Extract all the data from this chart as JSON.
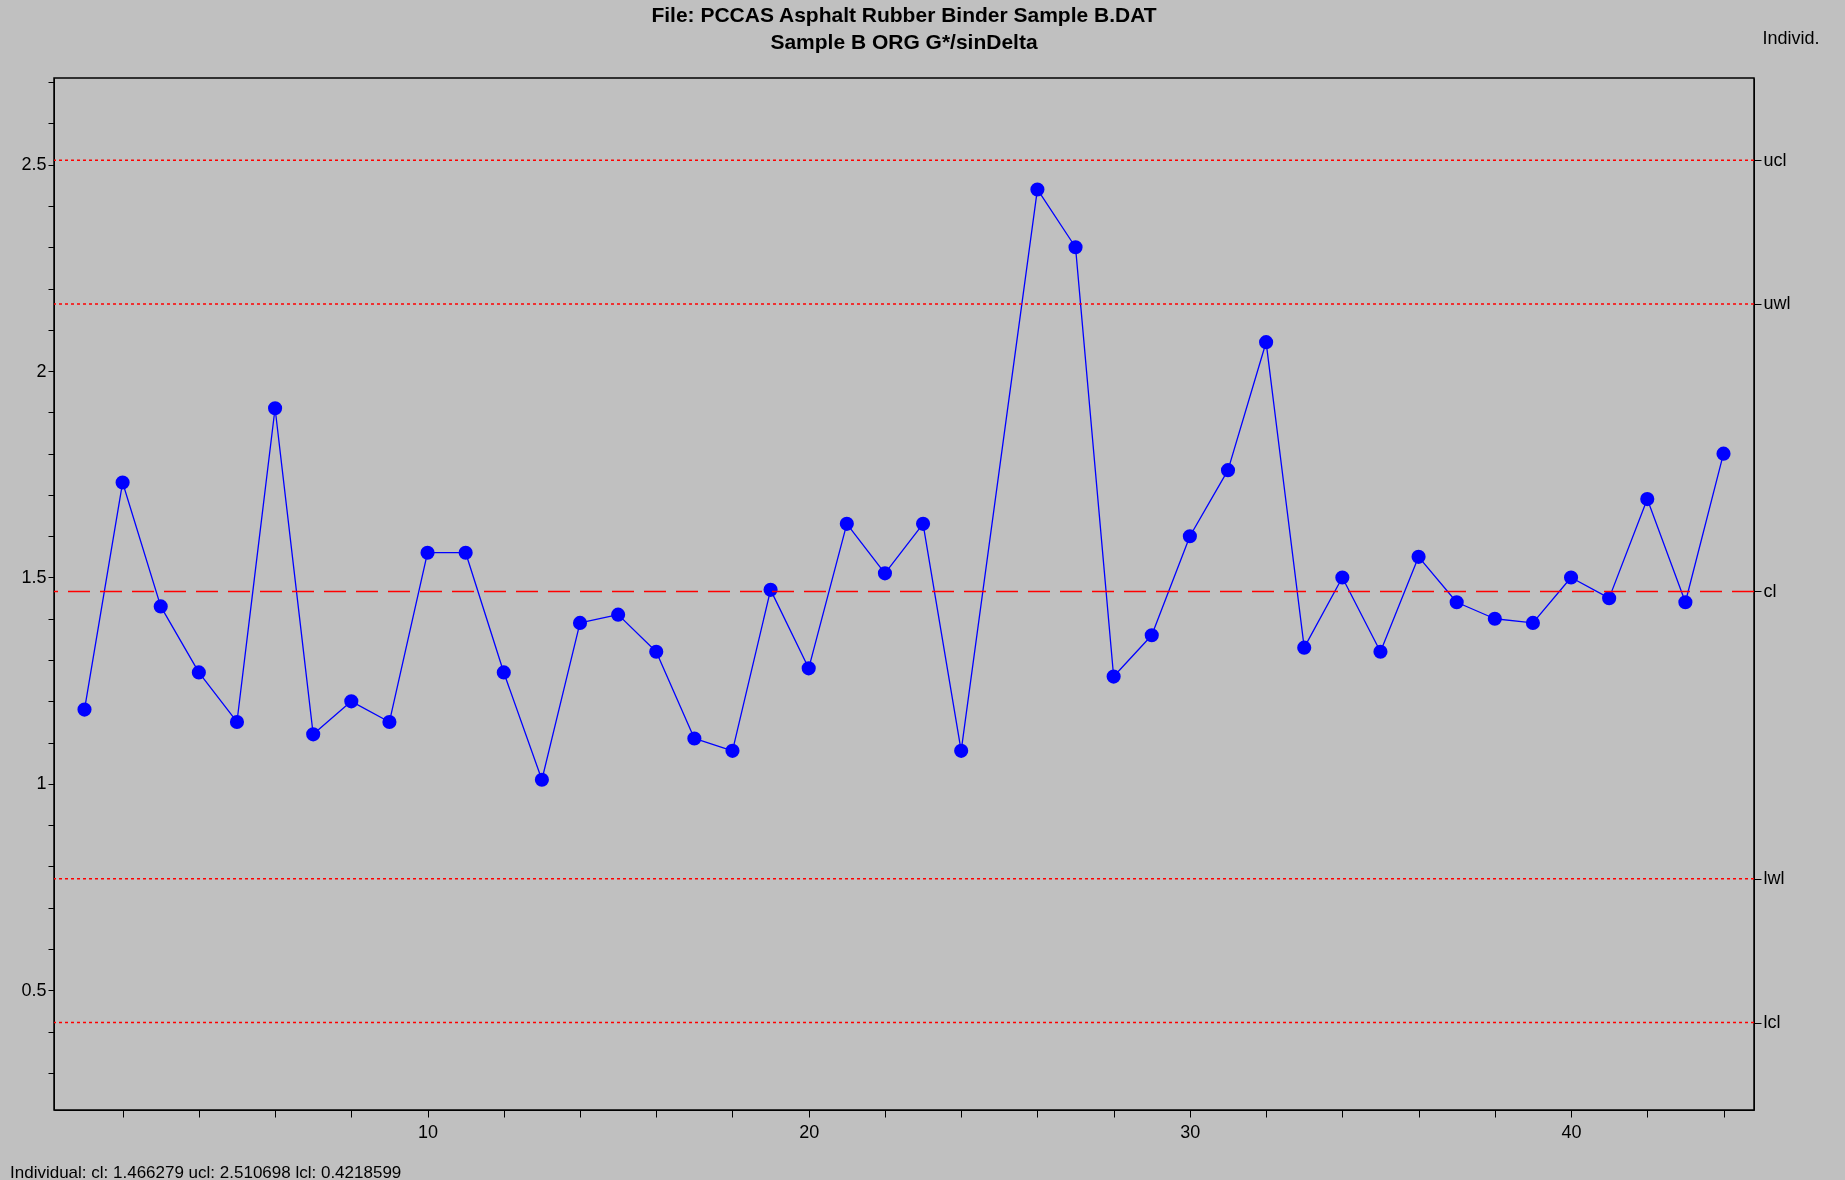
{
  "chart_data": {
    "type": "line",
    "title": "File: PCCAS Asphalt Rubber Binder Sample B.DAT",
    "subtitle": "Sample B ORG G*/sinDelta",
    "y2label": "Individ.",
    "annotations": [
      "Individual: cl: 1.466279 ucl: 2.510698 lcl: 0.4218599"
    ],
    "series": [
      {
        "color": "#0000ff",
        "x": [
          1,
          2,
          3,
          4,
          5,
          6,
          7,
          8,
          9,
          10,
          11,
          12,
          13,
          14,
          15,
          16,
          17,
          18,
          19,
          20,
          21,
          22,
          23,
          24,
          26,
          27,
          28,
          29,
          30,
          31,
          32,
          33,
          34,
          35,
          36,
          37,
          38,
          39,
          40,
          41,
          42,
          43,
          44
        ],
        "values": [
          1.18,
          1.73,
          1.43,
          1.27,
          1.15,
          1.91,
          1.12,
          1.2,
          1.15,
          1.56,
          1.56,
          1.27,
          1.01,
          1.39,
          1.41,
          1.32,
          1.11,
          1.08,
          1.47,
          1.28,
          1.63,
          1.51,
          1.63,
          1.08,
          2.44,
          2.3,
          1.26,
          1.36,
          1.6,
          1.76,
          2.07,
          1.33,
          1.5,
          1.32,
          1.55,
          1.44,
          1.4,
          1.39,
          1.5,
          1.45,
          1.69,
          1.44,
          1.8
        ]
      }
    ],
    "marker": "circle",
    "line_style": "solid",
    "grid": false,
    "xlim": [
      0.2,
      44.8
    ],
    "xticks": [
      {
        "value": 2,
        "label": null
      },
      {
        "value": 4,
        "label": null
      },
      {
        "value": 6,
        "label": null
      },
      {
        "value": 8,
        "label": null
      },
      10,
      {
        "value": 12,
        "label": null
      },
      {
        "value": 14,
        "label": null
      },
      {
        "value": 16,
        "label": null
      },
      {
        "value": 18,
        "label": null
      },
      20,
      {
        "value": 22,
        "label": null
      },
      {
        "value": 24,
        "label": null
      },
      {
        "value": 26,
        "label": null
      },
      {
        "value": 28,
        "label": null
      },
      30,
      {
        "value": 32,
        "label": null
      },
      {
        "value": 34,
        "label": null
      },
      {
        "value": 36,
        "label": null
      },
      {
        "value": 38,
        "label": null
      },
      40,
      {
        "value": 42,
        "label": null
      },
      {
        "value": 44,
        "label": null
      }
    ],
    "ylim": [
      0.21,
      2.71
    ],
    "yticks": [
      {
        "value": 0.3,
        "label": null
      },
      {
        "value": 0.4,
        "label": null
      },
      0.5,
      {
        "value": 0.6,
        "label": null
      },
      {
        "value": 0.7,
        "label": null
      },
      {
        "value": 0.8,
        "label": null
      },
      {
        "value": 0.9,
        "label": null
      },
      1,
      {
        "value": 1.1,
        "label": null
      },
      {
        "value": 1.2,
        "label": null
      },
      {
        "value": 1.3,
        "label": null
      },
      {
        "value": 1.4,
        "label": null
      },
      1.5,
      {
        "value": 1.6,
        "label": null
      },
      {
        "value": 1.7,
        "label": null
      },
      {
        "value": 1.8,
        "label": null
      },
      {
        "value": 1.9,
        "label": null
      },
      2,
      {
        "value": 2.1,
        "label": null
      },
      {
        "value": 2.2,
        "label": null
      },
      {
        "value": 2.3,
        "label": null
      },
      {
        "value": 2.4,
        "label": null
      },
      2.5,
      {
        "value": 2.6,
        "label": null
      },
      {
        "value": 2.7,
        "label": null
      }
    ],
    "ref_lines": [
      {
        "axis": "y",
        "value": 2.510698,
        "label": "ucl",
        "color": "#ff0000",
        "line_style": "dotted"
      },
      {
        "axis": "y",
        "value": 2.162558,
        "label": "uwl",
        "color": "#ff0000",
        "line_style": "dotted"
      },
      {
        "axis": "y",
        "value": 1.466279,
        "label": "cl",
        "color": "#ff0000",
        "line_style": "dashed"
      },
      {
        "axis": "y",
        "value": 0.77,
        "label": "lwl",
        "color": "#ff0000",
        "line_style": "dotted"
      },
      {
        "axis": "y",
        "value": 0.4218599,
        "label": "lcl",
        "color": "#ff0000",
        "line_style": "dotted"
      }
    ]
  }
}
